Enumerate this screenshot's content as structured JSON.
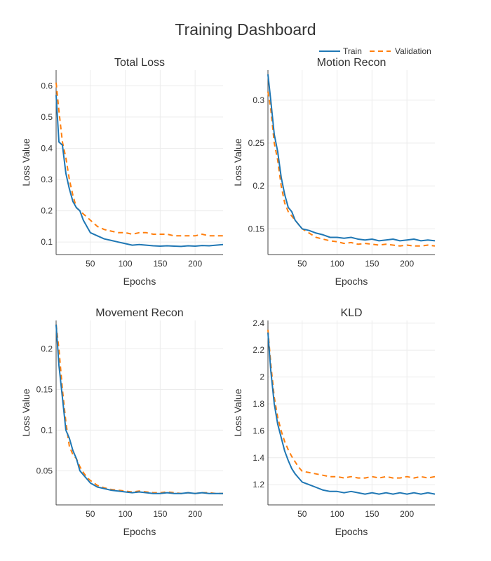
{
  "title": "Training Dashboard",
  "legend": {
    "placement": "top-right",
    "entries": [
      {
        "name": "Train",
        "color": "#1f77b4",
        "dash": "solid"
      },
      {
        "name": "Validation",
        "color": "#ff7f0e",
        "dash": "dashed"
      }
    ]
  },
  "chart_data": [
    {
      "type": "line",
      "title": "Total Loss",
      "xlabel": "Epochs",
      "ylabel": "Loss Value",
      "xlim": [
        1,
        240
      ],
      "ylim": [
        0.06,
        0.65
      ],
      "xticks": [
        50,
        100,
        150,
        200
      ],
      "yticks": [
        0.1,
        0.2,
        0.3,
        0.4,
        0.5,
        0.6
      ],
      "ytick_labels": [
        "0.1",
        "0.2",
        "0.3",
        "0.4",
        "0.5",
        "0.6"
      ],
      "grid": true,
      "series": [
        {
          "name": "Train",
          "x": [
            1,
            5,
            10,
            15,
            20,
            25,
            30,
            35,
            40,
            45,
            50,
            60,
            70,
            80,
            90,
            100,
            110,
            120,
            130,
            140,
            150,
            160,
            170,
            180,
            190,
            200,
            210,
            220,
            230,
            240
          ],
          "y": [
            0.57,
            0.42,
            0.41,
            0.32,
            0.27,
            0.23,
            0.21,
            0.2,
            0.17,
            0.15,
            0.13,
            0.12,
            0.11,
            0.105,
            0.1,
            0.095,
            0.09,
            0.092,
            0.09,
            0.088,
            0.087,
            0.088,
            0.087,
            0.086,
            0.088,
            0.087,
            0.089,
            0.088,
            0.09,
            0.092
          ]
        },
        {
          "name": "Validation",
          "x": [
            1,
            5,
            10,
            15,
            20,
            25,
            30,
            35,
            40,
            45,
            50,
            60,
            70,
            80,
            90,
            100,
            110,
            120,
            130,
            140,
            150,
            160,
            170,
            180,
            190,
            200,
            210,
            220,
            230,
            240
          ],
          "y": [
            0.61,
            0.52,
            0.42,
            0.37,
            0.3,
            0.25,
            0.21,
            0.2,
            0.19,
            0.18,
            0.17,
            0.15,
            0.14,
            0.135,
            0.13,
            0.13,
            0.125,
            0.13,
            0.13,
            0.125,
            0.125,
            0.125,
            0.12,
            0.12,
            0.12,
            0.12,
            0.125,
            0.12,
            0.12,
            0.12
          ]
        }
      ]
    },
    {
      "type": "line",
      "title": "Motion Recon",
      "xlabel": "Epochs",
      "ylabel": "Loss Value",
      "xlim": [
        1,
        240
      ],
      "ylim": [
        0.12,
        0.335
      ],
      "xticks": [
        50,
        100,
        150,
        200
      ],
      "yticks": [
        0.15,
        0.2,
        0.25,
        0.3
      ],
      "ytick_labels": [
        "0.15",
        "0.2",
        "0.25",
        "0.3"
      ],
      "grid": true,
      "series": [
        {
          "name": "Train",
          "x": [
            1,
            5,
            10,
            15,
            20,
            25,
            30,
            35,
            40,
            45,
            50,
            60,
            70,
            80,
            90,
            100,
            110,
            120,
            130,
            140,
            150,
            160,
            170,
            180,
            190,
            200,
            210,
            220,
            230,
            240
          ],
          "y": [
            0.33,
            0.3,
            0.26,
            0.24,
            0.21,
            0.19,
            0.175,
            0.17,
            0.16,
            0.155,
            0.15,
            0.148,
            0.145,
            0.143,
            0.14,
            0.14,
            0.139,
            0.14,
            0.138,
            0.137,
            0.138,
            0.136,
            0.137,
            0.138,
            0.136,
            0.137,
            0.138,
            0.136,
            0.137,
            0.136
          ]
        },
        {
          "name": "Validation",
          "x": [
            1,
            5,
            10,
            15,
            20,
            25,
            30,
            35,
            40,
            45,
            50,
            60,
            70,
            80,
            90,
            100,
            110,
            120,
            130,
            140,
            150,
            160,
            170,
            180,
            190,
            200,
            210,
            220,
            230,
            240
          ],
          "y": [
            0.31,
            0.29,
            0.25,
            0.23,
            0.2,
            0.18,
            0.17,
            0.165,
            0.16,
            0.155,
            0.15,
            0.145,
            0.14,
            0.138,
            0.136,
            0.135,
            0.133,
            0.134,
            0.132,
            0.133,
            0.132,
            0.131,
            0.132,
            0.131,
            0.13,
            0.131,
            0.13,
            0.13,
            0.131,
            0.13
          ]
        }
      ]
    },
    {
      "type": "line",
      "title": "Movement Recon",
      "xlabel": "Epochs",
      "ylabel": "Loss Value",
      "xlim": [
        1,
        240
      ],
      "ylim": [
        0.008,
        0.235
      ],
      "xticks": [
        50,
        100,
        150,
        200
      ],
      "yticks": [
        0.05,
        0.1,
        0.15,
        0.2
      ],
      "ytick_labels": [
        "0.05",
        "0.1",
        "0.15",
        "0.2"
      ],
      "grid": true,
      "series": [
        {
          "name": "Train",
          "x": [
            1,
            5,
            10,
            15,
            20,
            25,
            30,
            35,
            40,
            45,
            50,
            60,
            70,
            80,
            90,
            100,
            110,
            120,
            130,
            140,
            150,
            160,
            170,
            180,
            190,
            200,
            210,
            220,
            230,
            240
          ],
          "y": [
            0.23,
            0.18,
            0.14,
            0.1,
            0.09,
            0.075,
            0.065,
            0.05,
            0.045,
            0.04,
            0.035,
            0.03,
            0.028,
            0.026,
            0.025,
            0.024,
            0.023,
            0.024,
            0.023,
            0.022,
            0.022,
            0.023,
            0.022,
            0.022,
            0.023,
            0.022,
            0.023,
            0.022,
            0.022,
            0.022
          ]
        },
        {
          "name": "Validation",
          "x": [
            1,
            5,
            10,
            15,
            20,
            25,
            30,
            35,
            40,
            45,
            50,
            60,
            70,
            80,
            90,
            100,
            110,
            120,
            130,
            140,
            150,
            160,
            170,
            180,
            190,
            200,
            210,
            220,
            230,
            240
          ],
          "y": [
            0.23,
            0.2,
            0.15,
            0.11,
            0.08,
            0.07,
            0.065,
            0.055,
            0.048,
            0.042,
            0.038,
            0.032,
            0.029,
            0.027,
            0.026,
            0.025,
            0.024,
            0.025,
            0.024,
            0.023,
            0.023,
            0.024,
            0.023,
            0.022,
            0.023,
            0.022,
            0.023,
            0.023,
            0.022,
            0.022
          ]
        }
      ]
    },
    {
      "type": "line",
      "title": "KLD",
      "xlabel": "Epochs",
      "ylabel": "Loss Value",
      "xlim": [
        1,
        240
      ],
      "ylim": [
        1.05,
        2.42
      ],
      "xticks": [
        50,
        100,
        150,
        200
      ],
      "yticks": [
        1.2,
        1.4,
        1.6,
        1.8,
        2.0,
        2.2,
        2.4
      ],
      "ytick_labels": [
        "1.2",
        "1.4",
        "1.6",
        "1.8",
        "2",
        "2.2",
        "2.4"
      ],
      "grid": true,
      "series": [
        {
          "name": "Train",
          "x": [
            1,
            5,
            10,
            15,
            20,
            25,
            30,
            35,
            40,
            45,
            50,
            60,
            70,
            80,
            90,
            100,
            110,
            120,
            130,
            140,
            150,
            160,
            170,
            180,
            190,
            200,
            210,
            220,
            230,
            240
          ],
          "y": [
            2.33,
            2.05,
            1.8,
            1.65,
            1.55,
            1.45,
            1.38,
            1.32,
            1.28,
            1.25,
            1.22,
            1.2,
            1.18,
            1.16,
            1.15,
            1.15,
            1.14,
            1.15,
            1.14,
            1.13,
            1.14,
            1.13,
            1.14,
            1.13,
            1.14,
            1.13,
            1.14,
            1.13,
            1.14,
            1.13
          ]
        },
        {
          "name": "Validation",
          "x": [
            1,
            5,
            10,
            15,
            20,
            25,
            30,
            35,
            40,
            45,
            50,
            60,
            70,
            80,
            90,
            100,
            110,
            120,
            130,
            140,
            150,
            160,
            170,
            180,
            190,
            200,
            210,
            220,
            230,
            240
          ],
          "y": [
            2.35,
            2.1,
            1.85,
            1.7,
            1.6,
            1.52,
            1.46,
            1.41,
            1.37,
            1.33,
            1.3,
            1.29,
            1.28,
            1.27,
            1.26,
            1.26,
            1.25,
            1.26,
            1.25,
            1.25,
            1.26,
            1.25,
            1.26,
            1.25,
            1.25,
            1.26,
            1.25,
            1.26,
            1.25,
            1.26
          ]
        }
      ]
    }
  ]
}
